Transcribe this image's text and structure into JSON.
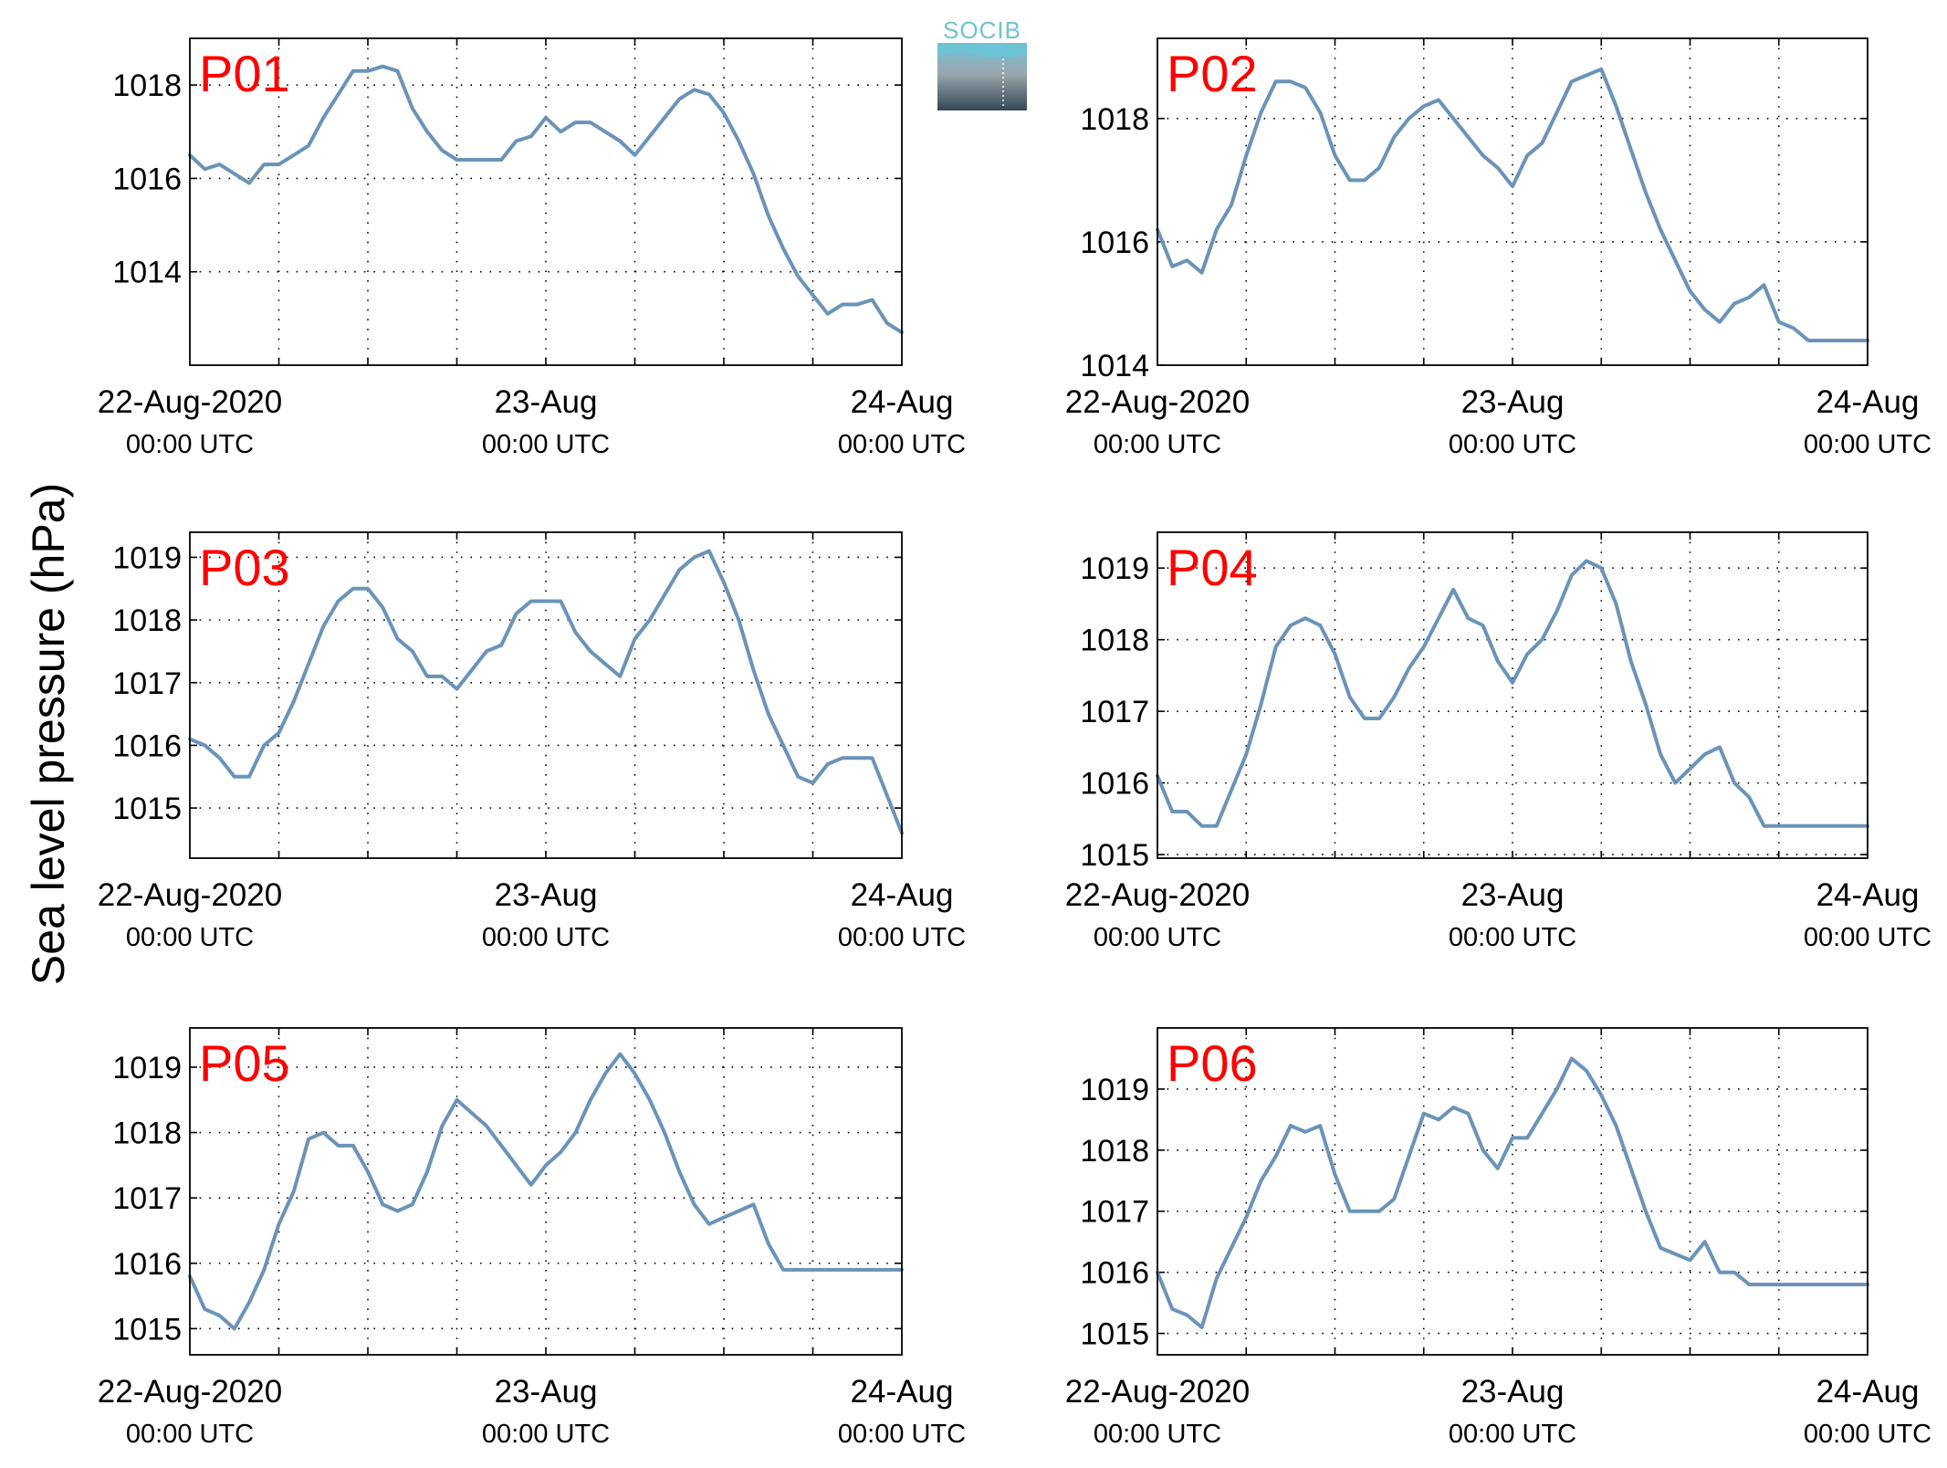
{
  "ylabel": "Sea level pressure (hPa)",
  "logo_text": "SOCIB",
  "colors": {
    "line": "#6b93b8",
    "label": "#ff0000",
    "grid": "#000000",
    "logo_top": "#6cc3d5",
    "logo_bottom": "#354854"
  },
  "chart_data": [
    {
      "type": "line",
      "label": "P01",
      "x_ticks": [
        {
          "date": "22-Aug-2020",
          "time": "00:00 UTC"
        },
        {
          "date": "23-Aug",
          "time": "00:00 UTC"
        },
        {
          "date": "24-Aug",
          "time": "00:00 UTC"
        }
      ],
      "xlim": [
        "2020-08-22T00:00Z",
        "2020-08-24T00:00Z"
      ],
      "ylim": [
        1012.0,
        1019.0
      ],
      "yticks": [
        1014,
        1016,
        1018
      ],
      "grid": true,
      "x": [
        "2020-08-22T00:00Z",
        "2020-08-22T01:00Z",
        "2020-08-22T02:00Z",
        "2020-08-22T03:00Z",
        "2020-08-22T04:00Z",
        "2020-08-22T05:00Z",
        "2020-08-22T06:00Z",
        "2020-08-22T07:00Z",
        "2020-08-22T08:00Z",
        "2020-08-22T09:00Z",
        "2020-08-22T10:00Z",
        "2020-08-22T11:00Z",
        "2020-08-22T12:00Z",
        "2020-08-22T13:00Z",
        "2020-08-22T14:00Z",
        "2020-08-22T15:00Z",
        "2020-08-22T16:00Z",
        "2020-08-22T17:00Z",
        "2020-08-22T18:00Z",
        "2020-08-22T19:00Z",
        "2020-08-22T20:00Z",
        "2020-08-22T21:00Z",
        "2020-08-22T22:00Z",
        "2020-08-22T23:00Z",
        "2020-08-23T00:00Z",
        "2020-08-23T01:00Z",
        "2020-08-23T02:00Z",
        "2020-08-23T03:00Z",
        "2020-08-23T04:00Z",
        "2020-08-23T05:00Z",
        "2020-08-23T06:00Z",
        "2020-08-23T07:00Z",
        "2020-08-23T08:00Z",
        "2020-08-23T09:00Z",
        "2020-08-23T10:00Z",
        "2020-08-23T11:00Z",
        "2020-08-23T12:00Z",
        "2020-08-23T13:00Z",
        "2020-08-23T14:00Z",
        "2020-08-23T15:00Z",
        "2020-08-23T16:00Z",
        "2020-08-23T17:00Z",
        "2020-08-23T18:00Z",
        "2020-08-23T19:00Z",
        "2020-08-23T20:00Z",
        "2020-08-23T21:00Z",
        "2020-08-23T22:00Z",
        "2020-08-23T23:00Z",
        "2020-08-24T00:00Z"
      ],
      "y": [
        1016.5,
        1016.2,
        1016.3,
        1016.1,
        1015.9,
        1016.3,
        1016.3,
        1016.5,
        1016.7,
        1017.3,
        1017.8,
        1018.3,
        1018.3,
        1018.4,
        1018.3,
        1017.5,
        1017.0,
        1016.6,
        1016.4,
        1016.4,
        1016.4,
        1016.4,
        1016.8,
        1016.9,
        1017.3,
        1017.0,
        1017.2,
        1017.2,
        1017.0,
        1016.8,
        1016.5,
        1016.9,
        1017.3,
        1017.7,
        1017.9,
        1017.8,
        1017.4,
        1016.8,
        1016.1,
        1015.2,
        1014.5,
        1013.9,
        1013.5,
        1013.1,
        1013.3,
        1013.3,
        1013.4,
        1012.9,
        1012.7
      ]
    },
    {
      "type": "line",
      "label": "P02",
      "x_ticks": [
        {
          "date": "22-Aug-2020",
          "time": "00:00 UTC"
        },
        {
          "date": "23-Aug",
          "time": "00:00 UTC"
        },
        {
          "date": "24-Aug",
          "time": "00:00 UTC"
        }
      ],
      "xlim": [
        "2020-08-22T00:00Z",
        "2020-08-24T00:00Z"
      ],
      "ylim": [
        1014.0,
        1019.3
      ],
      "yticks": [
        1014,
        1016,
        1018
      ],
      "grid": true,
      "x": [
        "2020-08-22T00:00Z",
        "2020-08-22T01:00Z",
        "2020-08-22T02:00Z",
        "2020-08-22T03:00Z",
        "2020-08-22T04:00Z",
        "2020-08-22T05:00Z",
        "2020-08-22T06:00Z",
        "2020-08-22T07:00Z",
        "2020-08-22T08:00Z",
        "2020-08-22T09:00Z",
        "2020-08-22T10:00Z",
        "2020-08-22T11:00Z",
        "2020-08-22T12:00Z",
        "2020-08-22T13:00Z",
        "2020-08-22T14:00Z",
        "2020-08-22T15:00Z",
        "2020-08-22T16:00Z",
        "2020-08-22T17:00Z",
        "2020-08-22T18:00Z",
        "2020-08-22T19:00Z",
        "2020-08-22T20:00Z",
        "2020-08-22T21:00Z",
        "2020-08-22T22:00Z",
        "2020-08-22T23:00Z",
        "2020-08-23T00:00Z",
        "2020-08-23T01:00Z",
        "2020-08-23T02:00Z",
        "2020-08-23T03:00Z",
        "2020-08-23T04:00Z",
        "2020-08-23T05:00Z",
        "2020-08-23T06:00Z",
        "2020-08-23T07:00Z",
        "2020-08-23T08:00Z",
        "2020-08-23T09:00Z",
        "2020-08-23T10:00Z",
        "2020-08-23T11:00Z",
        "2020-08-23T12:00Z",
        "2020-08-23T13:00Z",
        "2020-08-23T14:00Z",
        "2020-08-23T15:00Z",
        "2020-08-23T16:00Z",
        "2020-08-23T17:00Z",
        "2020-08-23T18:00Z",
        "2020-08-23T19:00Z",
        "2020-08-23T20:00Z",
        "2020-08-23T21:00Z",
        "2020-08-23T22:00Z",
        "2020-08-23T23:00Z",
        "2020-08-24T00:00Z"
      ],
      "y": [
        1016.2,
        1015.6,
        1015.7,
        1015.5,
        1016.2,
        1016.6,
        1017.4,
        1018.1,
        1018.6,
        1018.6,
        1018.5,
        1018.1,
        1017.4,
        1017.0,
        1017.0,
        1017.2,
        1017.7,
        1018.0,
        1018.2,
        1018.3,
        1018.0,
        1017.7,
        1017.4,
        1017.2,
        1016.9,
        1017.4,
        1017.6,
        1018.1,
        1018.6,
        1018.7,
        1018.8,
        1018.2,
        1017.5,
        1016.8,
        1016.2,
        1015.7,
        1015.2,
        1014.9,
        1014.7,
        1015.0,
        1015.1,
        1015.3,
        1014.7,
        1014.6,
        1014.4,
        1014.4,
        1014.4,
        1014.4,
        1014.4
      ]
    },
    {
      "type": "line",
      "label": "P03",
      "x_ticks": [
        {
          "date": "22-Aug-2020",
          "time": "00:00 UTC"
        },
        {
          "date": "23-Aug",
          "time": "00:00 UTC"
        },
        {
          "date": "24-Aug",
          "time": "00:00 UTC"
        }
      ],
      "xlim": [
        "2020-08-22T00:00Z",
        "2020-08-24T00:00Z"
      ],
      "ylim": [
        1014.2,
        1019.4
      ],
      "yticks": [
        1015,
        1016,
        1017,
        1018,
        1019
      ],
      "grid": true,
      "x": [
        "2020-08-22T00:00Z",
        "2020-08-22T01:00Z",
        "2020-08-22T02:00Z",
        "2020-08-22T03:00Z",
        "2020-08-22T04:00Z",
        "2020-08-22T05:00Z",
        "2020-08-22T06:00Z",
        "2020-08-22T07:00Z",
        "2020-08-22T08:00Z",
        "2020-08-22T09:00Z",
        "2020-08-22T10:00Z",
        "2020-08-22T11:00Z",
        "2020-08-22T12:00Z",
        "2020-08-22T13:00Z",
        "2020-08-22T14:00Z",
        "2020-08-22T15:00Z",
        "2020-08-22T16:00Z",
        "2020-08-22T17:00Z",
        "2020-08-22T18:00Z",
        "2020-08-22T19:00Z",
        "2020-08-22T20:00Z",
        "2020-08-22T21:00Z",
        "2020-08-22T22:00Z",
        "2020-08-22T23:00Z",
        "2020-08-23T00:00Z",
        "2020-08-23T01:00Z",
        "2020-08-23T02:00Z",
        "2020-08-23T03:00Z",
        "2020-08-23T04:00Z",
        "2020-08-23T05:00Z",
        "2020-08-23T06:00Z",
        "2020-08-23T07:00Z",
        "2020-08-23T08:00Z",
        "2020-08-23T09:00Z",
        "2020-08-23T10:00Z",
        "2020-08-23T11:00Z",
        "2020-08-23T12:00Z",
        "2020-08-23T13:00Z",
        "2020-08-23T14:00Z",
        "2020-08-23T15:00Z",
        "2020-08-23T16:00Z",
        "2020-08-23T17:00Z",
        "2020-08-23T18:00Z",
        "2020-08-23T19:00Z",
        "2020-08-23T20:00Z",
        "2020-08-23T21:00Z",
        "2020-08-23T22:00Z",
        "2020-08-23T23:00Z",
        "2020-08-24T00:00Z"
      ],
      "y": [
        1016.1,
        1016.0,
        1015.8,
        1015.5,
        1015.5,
        1016.0,
        1016.2,
        1016.7,
        1017.3,
        1017.9,
        1018.3,
        1018.5,
        1018.5,
        1018.2,
        1017.7,
        1017.5,
        1017.1,
        1017.1,
        1016.9,
        1017.2,
        1017.5,
        1017.6,
        1018.1,
        1018.3,
        1018.3,
        1018.3,
        1017.8,
        1017.5,
        1017.3,
        1017.1,
        1017.7,
        1018.0,
        1018.4,
        1018.8,
        1019.0,
        1019.1,
        1018.6,
        1018.0,
        1017.2,
        1016.5,
        1016.0,
        1015.5,
        1015.4,
        1015.7,
        1015.8,
        1015.8,
        1015.8,
        1015.2,
        1014.6
      ]
    },
    {
      "type": "line",
      "label": "P04",
      "x_ticks": [
        {
          "date": "22-Aug-2020",
          "time": "00:00 UTC"
        },
        {
          "date": "23-Aug",
          "time": "00:00 UTC"
        },
        {
          "date": "24-Aug",
          "time": "00:00 UTC"
        }
      ],
      "xlim": [
        "2020-08-22T00:00Z",
        "2020-08-24T00:00Z"
      ],
      "ylim": [
        1014.95,
        1019.5
      ],
      "yticks": [
        1015,
        1016,
        1017,
        1018,
        1019
      ],
      "grid": true,
      "x": [
        "2020-08-22T00:00Z",
        "2020-08-22T01:00Z",
        "2020-08-22T02:00Z",
        "2020-08-22T03:00Z",
        "2020-08-22T04:00Z",
        "2020-08-22T05:00Z",
        "2020-08-22T06:00Z",
        "2020-08-22T07:00Z",
        "2020-08-22T08:00Z",
        "2020-08-22T09:00Z",
        "2020-08-22T10:00Z",
        "2020-08-22T11:00Z",
        "2020-08-22T12:00Z",
        "2020-08-22T13:00Z",
        "2020-08-22T14:00Z",
        "2020-08-22T15:00Z",
        "2020-08-22T16:00Z",
        "2020-08-22T17:00Z",
        "2020-08-22T18:00Z",
        "2020-08-22T19:00Z",
        "2020-08-22T20:00Z",
        "2020-08-22T21:00Z",
        "2020-08-22T22:00Z",
        "2020-08-22T23:00Z",
        "2020-08-23T00:00Z",
        "2020-08-23T01:00Z",
        "2020-08-23T02:00Z",
        "2020-08-23T03:00Z",
        "2020-08-23T04:00Z",
        "2020-08-23T05:00Z",
        "2020-08-23T06:00Z",
        "2020-08-23T07:00Z",
        "2020-08-23T08:00Z",
        "2020-08-23T09:00Z",
        "2020-08-23T10:00Z",
        "2020-08-23T11:00Z",
        "2020-08-23T12:00Z",
        "2020-08-23T13:00Z",
        "2020-08-23T14:00Z",
        "2020-08-23T15:00Z",
        "2020-08-23T16:00Z",
        "2020-08-23T17:00Z",
        "2020-08-23T18:00Z",
        "2020-08-23T19:00Z",
        "2020-08-23T20:00Z",
        "2020-08-23T21:00Z",
        "2020-08-23T22:00Z",
        "2020-08-23T23:00Z",
        "2020-08-24T00:00Z"
      ],
      "y": [
        1016.1,
        1015.6,
        1015.6,
        1015.4,
        1015.4,
        1015.9,
        1016.4,
        1017.1,
        1017.9,
        1018.2,
        1018.3,
        1018.2,
        1017.8,
        1017.2,
        1016.9,
        1016.9,
        1017.2,
        1017.6,
        1017.9,
        1018.3,
        1018.7,
        1018.3,
        1018.2,
        1017.7,
        1017.4,
        1017.8,
        1018.0,
        1018.4,
        1018.9,
        1019.1,
        1019.0,
        1018.5,
        1017.7,
        1017.1,
        1016.4,
        1016.0,
        1016.2,
        1016.4,
        1016.5,
        1016.0,
        1015.8,
        1015.4,
        1015.4,
        1015.4,
        1015.4,
        1015.4,
        1015.4,
        1015.4,
        1015.4
      ]
    },
    {
      "type": "line",
      "label": "P05",
      "x_ticks": [
        {
          "date": "22-Aug-2020",
          "time": "00:00 UTC"
        },
        {
          "date": "23-Aug",
          "time": "00:00 UTC"
        },
        {
          "date": "24-Aug",
          "time": "00:00 UTC"
        }
      ],
      "xlim": [
        "2020-08-22T00:00Z",
        "2020-08-24T00:00Z"
      ],
      "ylim": [
        1014.6,
        1019.6
      ],
      "yticks": [
        1015,
        1016,
        1017,
        1018,
        1019
      ],
      "grid": true,
      "x": [
        "2020-08-22T00:00Z",
        "2020-08-22T01:00Z",
        "2020-08-22T02:00Z",
        "2020-08-22T03:00Z",
        "2020-08-22T04:00Z",
        "2020-08-22T05:00Z",
        "2020-08-22T06:00Z",
        "2020-08-22T07:00Z",
        "2020-08-22T08:00Z",
        "2020-08-22T09:00Z",
        "2020-08-22T10:00Z",
        "2020-08-22T11:00Z",
        "2020-08-22T12:00Z",
        "2020-08-22T13:00Z",
        "2020-08-22T14:00Z",
        "2020-08-22T15:00Z",
        "2020-08-22T16:00Z",
        "2020-08-22T17:00Z",
        "2020-08-22T18:00Z",
        "2020-08-22T19:00Z",
        "2020-08-22T20:00Z",
        "2020-08-22T21:00Z",
        "2020-08-22T22:00Z",
        "2020-08-22T23:00Z",
        "2020-08-23T00:00Z",
        "2020-08-23T01:00Z",
        "2020-08-23T02:00Z",
        "2020-08-23T03:00Z",
        "2020-08-23T04:00Z",
        "2020-08-23T05:00Z",
        "2020-08-23T06:00Z",
        "2020-08-23T07:00Z",
        "2020-08-23T08:00Z",
        "2020-08-23T09:00Z",
        "2020-08-23T10:00Z",
        "2020-08-23T11:00Z",
        "2020-08-23T12:00Z",
        "2020-08-23T13:00Z",
        "2020-08-23T14:00Z",
        "2020-08-23T15:00Z",
        "2020-08-23T16:00Z",
        "2020-08-23T17:00Z",
        "2020-08-23T18:00Z",
        "2020-08-23T19:00Z",
        "2020-08-23T20:00Z",
        "2020-08-23T21:00Z",
        "2020-08-23T22:00Z",
        "2020-08-23T23:00Z",
        "2020-08-24T00:00Z"
      ],
      "y": [
        1015.8,
        1015.3,
        1015.2,
        1015.0,
        1015.4,
        1015.9,
        1016.6,
        1017.1,
        1017.9,
        1018.0,
        1017.8,
        1017.8,
        1017.4,
        1016.9,
        1016.8,
        1016.9,
        1017.4,
        1018.1,
        1018.5,
        1018.3,
        1018.1,
        1017.8,
        1017.5,
        1017.2,
        1017.5,
        1017.7,
        1018.0,
        1018.5,
        1018.9,
        1019.2,
        1018.9,
        1018.5,
        1018.0,
        1017.4,
        1016.9,
        1016.6,
        1016.7,
        1016.8,
        1016.9,
        1016.3,
        1015.9,
        1015.9,
        1015.9,
        1015.9,
        1015.9,
        1015.9,
        1015.9,
        1015.9,
        1015.9
      ]
    },
    {
      "type": "line",
      "label": "P06",
      "x_ticks": [
        {
          "date": "22-Aug-2020",
          "time": "00:00 UTC"
        },
        {
          "date": "23-Aug",
          "time": "00:00 UTC"
        },
        {
          "date": "24-Aug",
          "time": "00:00 UTC"
        }
      ],
      "xlim": [
        "2020-08-22T00:00Z",
        "2020-08-24T00:00Z"
      ],
      "ylim": [
        1014.65,
        1020.0
      ],
      "yticks": [
        1015,
        1016,
        1017,
        1018,
        1019
      ],
      "grid": true,
      "x": [
        "2020-08-22T00:00Z",
        "2020-08-22T01:00Z",
        "2020-08-22T02:00Z",
        "2020-08-22T03:00Z",
        "2020-08-22T04:00Z",
        "2020-08-22T05:00Z",
        "2020-08-22T06:00Z",
        "2020-08-22T07:00Z",
        "2020-08-22T08:00Z",
        "2020-08-22T09:00Z",
        "2020-08-22T10:00Z",
        "2020-08-22T11:00Z",
        "2020-08-22T12:00Z",
        "2020-08-22T13:00Z",
        "2020-08-22T14:00Z",
        "2020-08-22T15:00Z",
        "2020-08-22T16:00Z",
        "2020-08-22T17:00Z",
        "2020-08-22T18:00Z",
        "2020-08-22T19:00Z",
        "2020-08-22T20:00Z",
        "2020-08-22T21:00Z",
        "2020-08-22T22:00Z",
        "2020-08-22T23:00Z",
        "2020-08-23T00:00Z",
        "2020-08-23T01:00Z",
        "2020-08-23T02:00Z",
        "2020-08-23T03:00Z",
        "2020-08-23T04:00Z",
        "2020-08-23T05:00Z",
        "2020-08-23T06:00Z",
        "2020-08-23T07:00Z",
        "2020-08-23T08:00Z",
        "2020-08-23T09:00Z",
        "2020-08-23T10:00Z",
        "2020-08-23T11:00Z",
        "2020-08-23T12:00Z",
        "2020-08-23T13:00Z",
        "2020-08-23T14:00Z",
        "2020-08-23T15:00Z",
        "2020-08-23T16:00Z",
        "2020-08-23T17:00Z",
        "2020-08-23T18:00Z",
        "2020-08-23T19:00Z",
        "2020-08-23T20:00Z",
        "2020-08-23T21:00Z",
        "2020-08-23T22:00Z",
        "2020-08-23T23:00Z",
        "2020-08-24T00:00Z"
      ],
      "y": [
        1016.0,
        1015.4,
        1015.3,
        1015.1,
        1015.9,
        1016.4,
        1016.9,
        1017.5,
        1017.9,
        1018.4,
        1018.3,
        1018.4,
        1017.6,
        1017.0,
        1017.0,
        1017.0,
        1017.2,
        1017.9,
        1018.6,
        1018.5,
        1018.7,
        1018.6,
        1018.0,
        1017.7,
        1018.2,
        1018.2,
        1018.6,
        1019.0,
        1019.5,
        1019.3,
        1018.9,
        1018.4,
        1017.7,
        1017.0,
        1016.4,
        1016.3,
        1016.2,
        1016.5,
        1016.0,
        1016.0,
        1015.8,
        1015.8,
        1015.8,
        1015.8,
        1015.8,
        1015.8,
        1015.8,
        1015.8,
        1015.8
      ]
    }
  ]
}
